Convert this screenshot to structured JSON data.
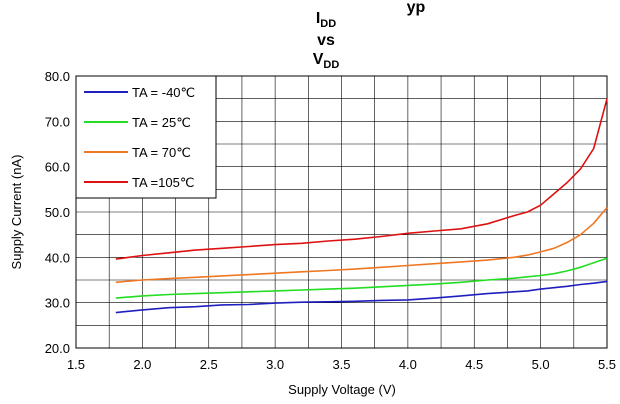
{
  "chart_data": {
    "type": "line",
    "title": {
      "line1_main": "I",
      "line1_sub": "DD",
      "line2": "vs",
      "line3_main": "V",
      "line3_sub": "DD",
      "top_fragment": "yp"
    },
    "xlabel": "Supply Voltage (V)",
    "ylabel": "Supply Current (nA)",
    "xlim": [
      1.5,
      5.5
    ],
    "ylim": [
      20.0,
      80.0
    ],
    "xticks": [
      "1.5",
      "2.0",
      "2.5",
      "3.0",
      "3.5",
      "4.0",
      "4.5",
      "5.0",
      "5.5"
    ],
    "yticks": [
      "20.0",
      "30.0",
      "40.0",
      "50.0",
      "60.0",
      "70.0",
      "80.0"
    ],
    "grid": true,
    "legend_position": "top-left",
    "x": [
      1.8,
      2.0,
      2.2,
      2.4,
      2.6,
      2.8,
      3.0,
      3.2,
      3.4,
      3.6,
      3.8,
      4.0,
      4.2,
      4.4,
      4.6,
      4.8,
      4.9,
      5.0,
      5.1,
      5.2,
      5.3,
      5.4,
      5.5
    ],
    "series": [
      {
        "name": "TA = -40℃",
        "color": "#1f1fbf",
        "values": [
          27.8,
          28.4,
          28.9,
          29.1,
          29.5,
          29.6,
          29.9,
          30.1,
          30.2,
          30.3,
          30.5,
          30.6,
          31.0,
          31.5,
          32.0,
          32.4,
          32.6,
          33.0,
          33.3,
          33.6,
          34.0,
          34.3,
          34.7
        ]
      },
      {
        "name": "TA = 25℃",
        "color": "#22dd22",
        "values": [
          31.0,
          31.5,
          31.8,
          32.0,
          32.2,
          32.4,
          32.6,
          32.8,
          33.0,
          33.2,
          33.5,
          33.8,
          34.1,
          34.5,
          35.0,
          35.4,
          35.7,
          36.0,
          36.4,
          37.0,
          37.8,
          38.8,
          39.8
        ]
      },
      {
        "name": "TA = 70℃",
        "color": "#ee7722",
        "values": [
          34.5,
          35.0,
          35.3,
          35.6,
          35.9,
          36.2,
          36.5,
          36.8,
          37.1,
          37.4,
          37.8,
          38.2,
          38.6,
          39.0,
          39.4,
          40.0,
          40.5,
          41.2,
          42.0,
          43.3,
          45.0,
          47.5,
          51.0
        ]
      },
      {
        "name": "TA =105℃",
        "color": "#dd1111",
        "values": [
          39.6,
          40.4,
          41.0,
          41.6,
          42.0,
          42.4,
          42.8,
          43.1,
          43.6,
          44.0,
          44.6,
          45.3,
          45.8,
          46.3,
          47.4,
          49.2,
          50.0,
          51.5,
          54.0,
          56.5,
          59.5,
          64.0,
          75.0
        ]
      }
    ]
  }
}
